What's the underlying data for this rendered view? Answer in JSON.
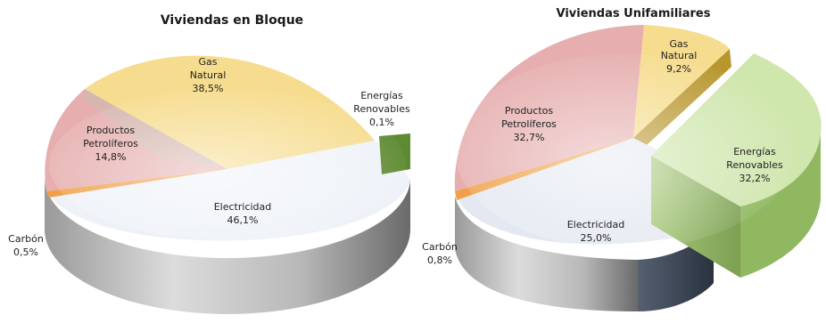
{
  "chart_data": [
    {
      "type": "pie",
      "title": "Viviendas en Bloque",
      "slices": [
        {
          "label": [
            "Gas",
            "Natural",
            "38,5%"
          ],
          "value": 38.5,
          "color": "#f4d27a"
        },
        {
          "label": [
            "Energías",
            "Renovables",
            "0,1%"
          ],
          "value": 0.1,
          "color": "#6f9a3c"
        },
        {
          "label": [
            "Electricidad",
            "46,1%"
          ],
          "value": 46.1,
          "color": "#ecf0f6"
        },
        {
          "label": [
            "Carbón",
            "0,5%"
          ],
          "value": 0.5,
          "color": "#f0a048"
        },
        {
          "label": [
            "Productos",
            "Petrolíferos",
            "14,8%"
          ],
          "value": 14.8,
          "color": "#e2a3a3"
        }
      ]
    },
    {
      "type": "pie",
      "title": "Viviendas Unifamiliares",
      "slices": [
        {
          "label": [
            "Gas",
            "Natural",
            "9,2%"
          ],
          "value": 9.2,
          "color": "#f4d27a"
        },
        {
          "label": [
            "Energías",
            "Renovables",
            "32,2%"
          ],
          "value": 32.2,
          "color": "#b8d890"
        },
        {
          "label": [
            "Electricidad",
            "25,0%"
          ],
          "value": 25.0,
          "color": "#dde4ee"
        },
        {
          "label": [
            "Carbón",
            "0,8%"
          ],
          "value": 0.8,
          "color": "#f0a048"
        },
        {
          "label": [
            "Productos",
            "Petrolíferos",
            "32,7%"
          ],
          "value": 32.7,
          "color": "#e2a3a3"
        }
      ]
    }
  ]
}
